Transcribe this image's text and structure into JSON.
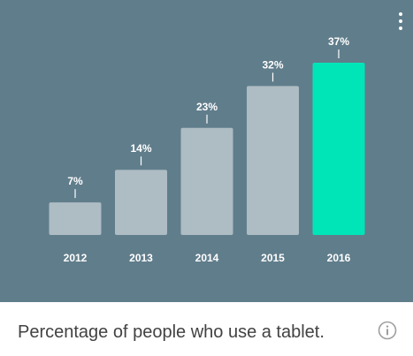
{
  "chart_data": {
    "type": "bar",
    "categories": [
      "2012",
      "2013",
      "2014",
      "2015",
      "2016"
    ],
    "values": [
      7,
      14,
      23,
      32,
      37
    ],
    "value_labels": [
      "7%",
      "14%",
      "23%",
      "32%",
      "37%"
    ],
    "unit": "%",
    "highlight_index": 4,
    "title": "",
    "xlabel": "",
    "ylabel": "",
    "ylim": [
      0,
      37
    ],
    "grid": false
  },
  "colors": {
    "panel_background": "#607d8b",
    "bar": "#aebcc3",
    "bar_highlight": "#00e5b8",
    "label": "#ffffff"
  },
  "footer": {
    "caption": "Percentage of people who use a tablet.",
    "info_icon": "info-icon"
  },
  "menu": {
    "icon": "more-vertical-icon"
  }
}
